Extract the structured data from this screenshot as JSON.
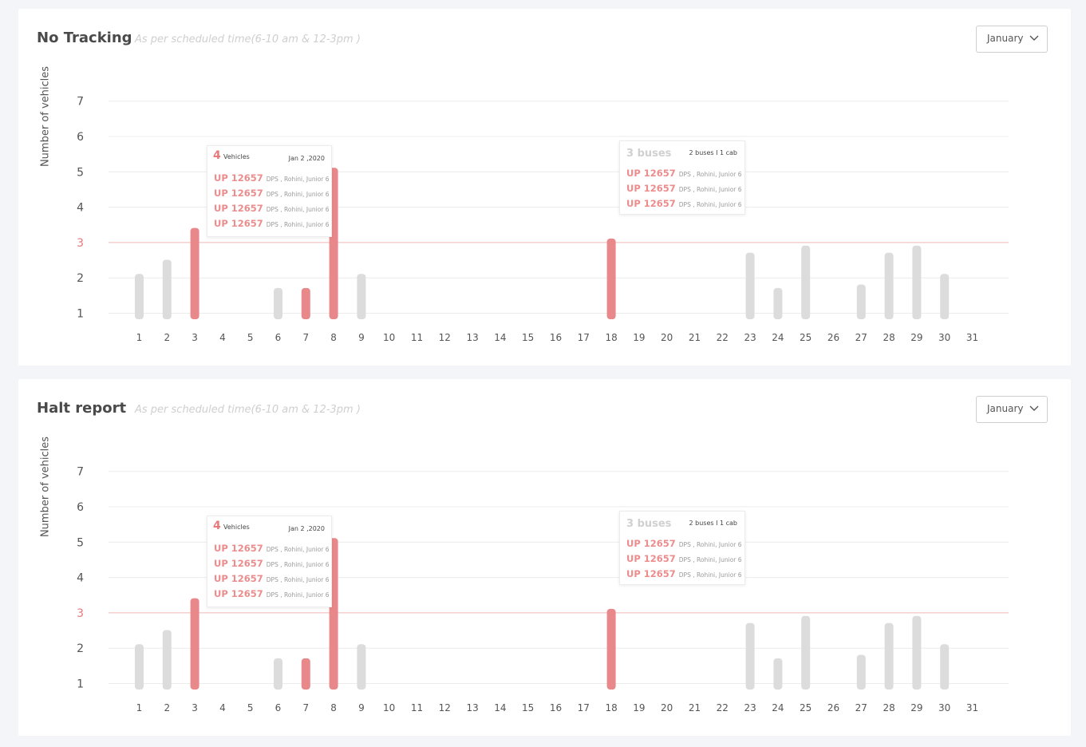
{
  "colors": {
    "page_bg": "#f4f5f9",
    "card_bg": "#ffffff",
    "bar_normal": "#dcdcdc",
    "bar_alert": "#e8888a",
    "threshold_line": "#f2b5b5",
    "threshold_label": "#e8787a",
    "grid": "#ececec"
  },
  "cards": [
    {
      "title": "No Tracking",
      "subtitle": "As per scheduled time(6-10 am & 12-3pm )",
      "month": "January",
      "ylabel": "Number of vehicles",
      "tooltip_vehicles": {
        "count": "4",
        "unit": "Vehicles",
        "date": "Jan 2 ,2020",
        "rows": [
          {
            "plate": "UP 12657",
            "place": "DPS , Rohini, Junior 6"
          },
          {
            "plate": "UP 12657",
            "place": "DPS , Rohini, Junior 6"
          },
          {
            "plate": "UP 12657",
            "place": "DPS , Rohini, Junior 6"
          },
          {
            "plate": "UP 12657",
            "place": "DPS , Rohini, Junior 6"
          }
        ]
      },
      "tooltip_buses": {
        "title": "3 buses",
        "split": "2 buses I 1 cab",
        "rows": [
          {
            "plate": "UP 12657",
            "place": "DPS , Rohini, Junior 6"
          },
          {
            "plate": "UP 12657",
            "place": "DPS , Rohini, Junior 6"
          },
          {
            "plate": "UP 12657",
            "place": "DPS , Rohini, Junior 6"
          }
        ]
      }
    },
    {
      "title": "Halt report",
      "subtitle": "As per scheduled time(6-10 am & 12-3pm )",
      "month": "January",
      "ylabel": "Number of vehicles",
      "tooltip_vehicles": {
        "count": "4",
        "unit": "Vehicles",
        "date": "Jan 2 ,2020",
        "rows": [
          {
            "plate": "UP 12657",
            "place": "DPS , Rohini, Junior 6"
          },
          {
            "plate": "UP 12657",
            "place": "DPS , Rohini, Junior 6"
          },
          {
            "plate": "UP 12657",
            "place": "DPS , Rohini, Junior 6"
          },
          {
            "plate": "UP 12657",
            "place": "DPS , Rohini, Junior 6"
          }
        ]
      },
      "tooltip_buses": {
        "title": "3 buses",
        "split": "2 buses I 1 cab",
        "rows": [
          {
            "plate": "UP 12657",
            "place": "DPS , Rohini, Junior 6"
          },
          {
            "plate": "UP 12657",
            "place": "DPS , Rohini, Junior 6"
          },
          {
            "plate": "UP 12657",
            "place": "DPS , Rohini, Junior 6"
          }
        ]
      }
    }
  ],
  "chart_data": [
    {
      "type": "bar",
      "title": "No Tracking",
      "xlabel": "",
      "ylabel": "Number of vehicles",
      "ylim": [
        1,
        7
      ],
      "yticks": [
        1,
        2,
        3,
        4,
        5,
        6,
        7
      ],
      "threshold": 3,
      "grid": true,
      "categories": [
        "1",
        "2",
        "3",
        "4",
        "5",
        "6",
        "7",
        "8",
        "9",
        "10",
        "11",
        "12",
        "13",
        "14",
        "15",
        "16",
        "17",
        "18",
        "19",
        "20",
        "21",
        "22",
        "23",
        "24",
        "25",
        "26",
        "27",
        "28",
        "29",
        "30",
        "31"
      ],
      "values": [
        2,
        2.4,
        3.3,
        null,
        null,
        1.6,
        1.6,
        5,
        2,
        null,
        null,
        null,
        null,
        null,
        null,
        null,
        null,
        3,
        null,
        null,
        null,
        null,
        2.6,
        1.6,
        2.8,
        null,
        1.7,
        2.6,
        2.8,
        2,
        null
      ],
      "alert": [
        false,
        false,
        true,
        false,
        false,
        false,
        true,
        true,
        false,
        false,
        false,
        false,
        false,
        false,
        false,
        false,
        false,
        true,
        false,
        false,
        false,
        false,
        false,
        false,
        false,
        false,
        false,
        false,
        false,
        false,
        false
      ]
    },
    {
      "type": "bar",
      "title": "Halt report",
      "xlabel": "",
      "ylabel": "Number of vehicles",
      "ylim": [
        1,
        7
      ],
      "yticks": [
        1,
        2,
        3,
        4,
        5,
        6,
        7
      ],
      "threshold": 3,
      "grid": true,
      "categories": [
        "1",
        "2",
        "3",
        "4",
        "5",
        "6",
        "7",
        "8",
        "9",
        "10",
        "11",
        "12",
        "13",
        "14",
        "15",
        "16",
        "17",
        "18",
        "19",
        "20",
        "21",
        "22",
        "23",
        "24",
        "25",
        "26",
        "27",
        "28",
        "29",
        "30",
        "31"
      ],
      "values": [
        2,
        2.4,
        3.3,
        null,
        null,
        1.6,
        1.6,
        5,
        2,
        null,
        null,
        null,
        null,
        null,
        null,
        null,
        null,
        3,
        null,
        null,
        null,
        null,
        2.6,
        1.6,
        2.8,
        null,
        1.7,
        2.6,
        2.8,
        2,
        null
      ],
      "alert": [
        false,
        false,
        true,
        false,
        false,
        false,
        true,
        true,
        false,
        false,
        false,
        false,
        false,
        false,
        false,
        false,
        false,
        true,
        false,
        false,
        false,
        false,
        false,
        false,
        false,
        false,
        false,
        false,
        false,
        false,
        false
      ]
    }
  ]
}
